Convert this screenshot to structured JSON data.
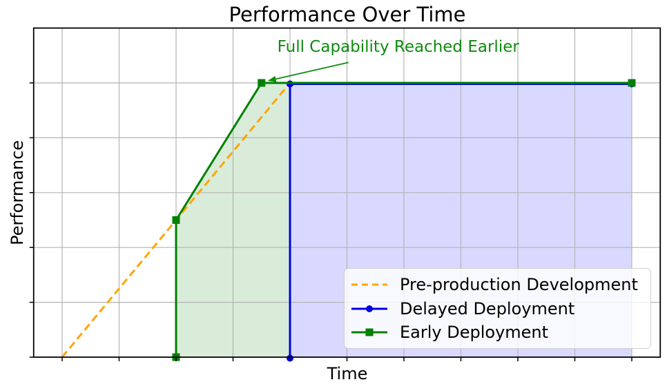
{
  "chart_data": {
    "type": "line",
    "title": "Performance Over Time",
    "xlabel": "Time",
    "ylabel": "Performance",
    "xlim": [
      -0.5,
      10.5
    ],
    "ylim": [
      0,
      1.2
    ],
    "x_ticks": [
      0,
      1,
      2,
      3,
      4,
      5,
      6,
      7,
      8,
      9,
      10
    ],
    "y_ticks": [
      0,
      0.2,
      0.4,
      0.6,
      0.8,
      1.0
    ],
    "tick_labels_visible": false,
    "grid": true,
    "grid_color": "#b3b3b3",
    "spine_color": "#000000",
    "series": [
      {
        "name": "Pre-production Development",
        "color": "#ffa500",
        "line_style": "dashed",
        "marker": "none",
        "points": [
          [
            0,
            0
          ],
          [
            4,
            1.0
          ]
        ]
      },
      {
        "name": "Delayed Deployment",
        "color": "#0000e0",
        "line_style": "solid",
        "marker": "circle",
        "points": [
          [
            4,
            0
          ],
          [
            4,
            1.0
          ],
          [
            10,
            1.0
          ]
        ]
      },
      {
        "name": "Early Deployment",
        "color": "#008000",
        "line_style": "solid",
        "marker": "square",
        "points": [
          [
            2,
            0
          ],
          [
            2,
            0.5
          ],
          [
            3.5,
            1.0
          ],
          [
            10,
            1.0
          ]
        ]
      }
    ],
    "fills": [
      {
        "name": "early-deployment-gain-region",
        "color": "#008000",
        "opacity": 0.15,
        "points": [
          [
            2,
            0
          ],
          [
            2,
            0.5
          ],
          [
            3.5,
            1.0
          ],
          [
            4,
            1.0
          ],
          [
            4,
            0
          ]
        ]
      },
      {
        "name": "delayed-deployment-region",
        "color": "#0000ff",
        "opacity": 0.15,
        "points": [
          [
            4,
            0
          ],
          [
            4,
            1.0
          ],
          [
            10,
            1.0
          ],
          [
            10,
            0
          ]
        ]
      }
    ],
    "annotation": {
      "text": "Full Capability Reached Earlier",
      "color": "#0e8b0e",
      "arrow_color": "#0e8b0e",
      "xy": [
        3.5,
        1.0
      ],
      "xytext": [
        5.9,
        1.13
      ]
    },
    "legend": {
      "position": "lower right",
      "items": [
        "Pre-production Development",
        "Delayed Deployment",
        "Early Deployment"
      ]
    }
  }
}
